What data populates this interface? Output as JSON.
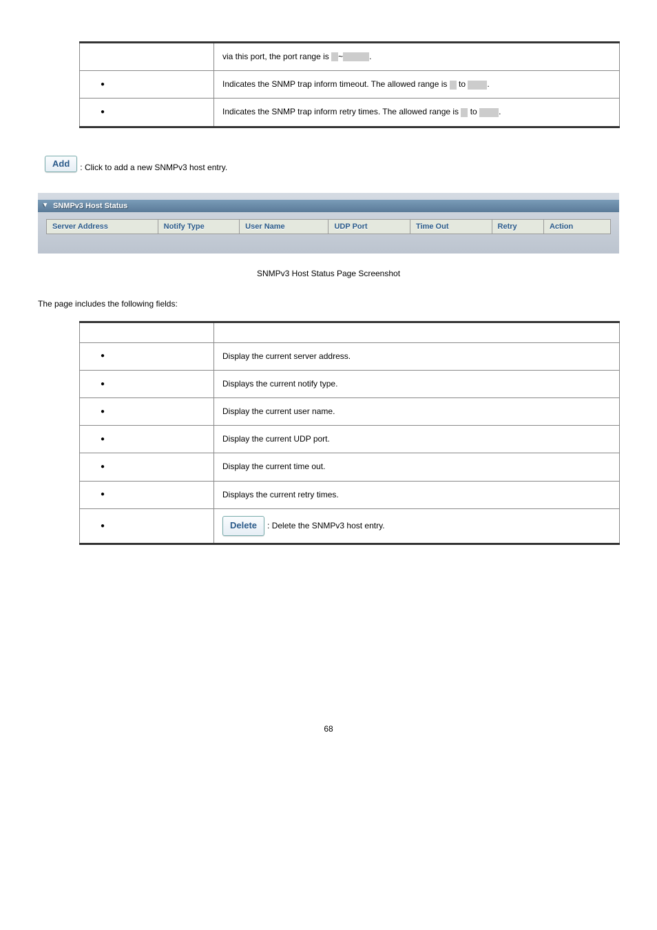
{
  "top_table": {
    "rows": [
      {
        "obj": "",
        "has_bullet": false,
        "desc_parts": [
          "via this port, the port range is ",
          "BOX_NARROW",
          "~",
          "BOX_WIDE",
          "."
        ]
      },
      {
        "obj": "",
        "has_bullet": true,
        "desc_parts": [
          "Indicates the SNMP trap inform timeout. The allowed range is ",
          "BOX_NARROW",
          " to ",
          "BOX_MID",
          "."
        ]
      },
      {
        "obj": "",
        "has_bullet": true,
        "desc_parts": [
          "Indicates the SNMP trap inform retry times. The allowed range is ",
          "BOX_NARROW",
          " to ",
          "BOX_MID",
          "."
        ]
      }
    ]
  },
  "add_button_label": "Add",
  "add_button_desc": ": Click to add a new SNMPv3 host entry.",
  "screenshot": {
    "panel_title": "SNMPv3 Host Status",
    "columns": [
      "Server Address",
      "Notify Type",
      "User Name",
      "UDP Port",
      "Time Out",
      "Retry",
      "Action"
    ],
    "col_widths": [
      "150px",
      "110px",
      "120px",
      "110px",
      "110px",
      "70px",
      "90px"
    ]
  },
  "screenshot_caption": "SNMPv3 Host Status Page Screenshot",
  "fields_intro": "The page includes the following fields:",
  "fields_table": {
    "header": {
      "obj": "",
      "desc": ""
    },
    "rows": [
      {
        "obj": "",
        "desc": "Display the current server address."
      },
      {
        "obj": "",
        "desc": "Displays the current notify type."
      },
      {
        "obj": "",
        "desc": "Display the current user name."
      },
      {
        "obj": "",
        "desc": "Display the current UDP port."
      },
      {
        "obj": "",
        "desc": "Display the current time out."
      },
      {
        "obj": "",
        "desc": "Displays the current retry times."
      },
      {
        "obj": "",
        "desc_button": "Delete",
        "desc_after": ": Delete the SNMPv3 host entry."
      }
    ]
  },
  "page_number": "68",
  "colors": {
    "border_dark": "#333333",
    "border_light": "#888888",
    "header_blue": "#2a5a8a",
    "panel_bg_top": "#d5dbe3",
    "panel_bg_bottom": "#bcc4cf",
    "ss_header_bg": "#e4e8de"
  }
}
